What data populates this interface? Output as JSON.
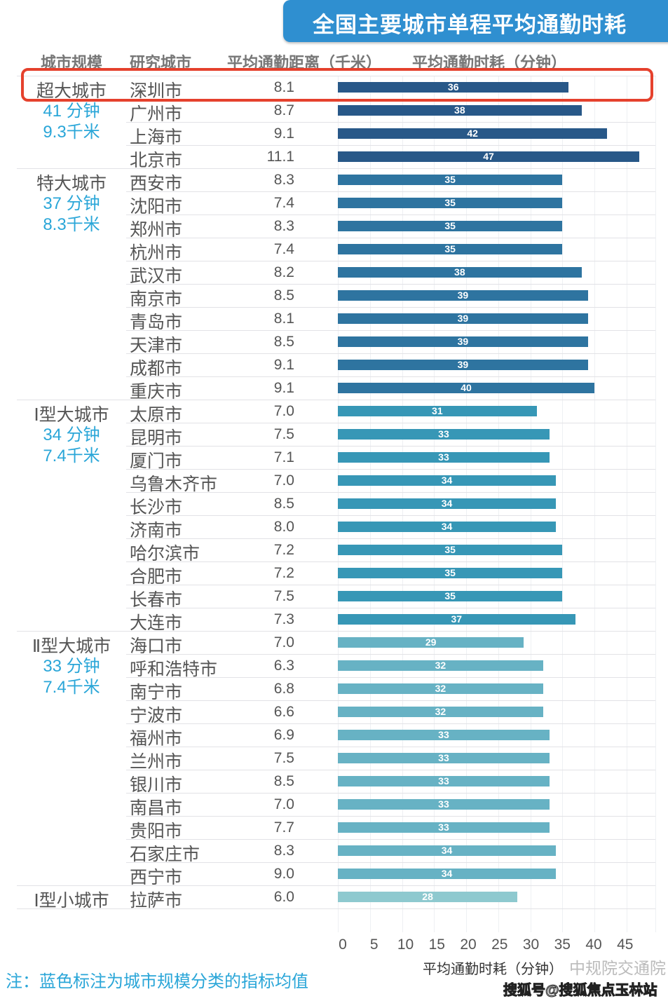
{
  "title": "全国主要城市单程平均通勤时耗",
  "headers": {
    "scale": "城市规模",
    "city": "研究城市",
    "distance": "平均通勤距离（千米）",
    "time": "平均通勤时耗（分钟）"
  },
  "colors": {
    "super": "#285888",
    "mega": "#2e74a0",
    "type1": "#3797b6",
    "type2": "#67b2c4",
    "small": "#8ec9cf",
    "highlight": "#e5412d",
    "note": "#2aa6d8",
    "title_bg": "#2f8fd0"
  },
  "groups": [
    {
      "name": "超大城市",
      "time": "41 分钟",
      "dist": "9.3千米",
      "color_key": "super"
    },
    {
      "name": "特大城市",
      "time": "37 分钟",
      "dist": "8.3千米",
      "color_key": "mega"
    },
    {
      "name": "Ⅰ型大城市",
      "time": "34 分钟",
      "dist": "7.4千米",
      "color_key": "type1"
    },
    {
      "name": "Ⅱ型大城市",
      "time": "33 分钟",
      "dist": "7.4千米",
      "color_key": "type2"
    },
    {
      "name": "Ⅰ型小城市",
      "color_key": "small"
    }
  ],
  "chart_data": {
    "type": "bar",
    "orientation": "horizontal",
    "xlabel": "平均通勤时耗（分钟）",
    "xlim": [
      0,
      47
    ],
    "xticks": [
      "0",
      "5",
      "10",
      "15",
      "20",
      "25",
      "30",
      "35",
      "40",
      "45"
    ],
    "grid": true,
    "highlighted": "深圳市",
    "rows": [
      {
        "group": 0,
        "city": "深圳市",
        "distance": "8.1",
        "time": 36
      },
      {
        "group": 0,
        "city": "广州市",
        "distance": "8.7",
        "time": 38
      },
      {
        "group": 0,
        "city": "上海市",
        "distance": "9.1",
        "time": 42
      },
      {
        "group": 0,
        "city": "北京市",
        "distance": "11.1",
        "time": 47
      },
      {
        "group": 1,
        "city": "西安市",
        "distance": "8.3",
        "time": 35
      },
      {
        "group": 1,
        "city": "沈阳市",
        "distance": "7.4",
        "time": 35
      },
      {
        "group": 1,
        "city": "郑州市",
        "distance": "8.3",
        "time": 35
      },
      {
        "group": 1,
        "city": "杭州市",
        "distance": "7.4",
        "time": 35
      },
      {
        "group": 1,
        "city": "武汉市",
        "distance": "8.2",
        "time": 38
      },
      {
        "group": 1,
        "city": "南京市",
        "distance": "8.5",
        "time": 39
      },
      {
        "group": 1,
        "city": "青岛市",
        "distance": "8.1",
        "time": 39
      },
      {
        "group": 1,
        "city": "天津市",
        "distance": "8.5",
        "time": 39
      },
      {
        "group": 1,
        "city": "成都市",
        "distance": "9.1",
        "time": 39
      },
      {
        "group": 1,
        "city": "重庆市",
        "distance": "9.1",
        "time": 40
      },
      {
        "group": 2,
        "city": "太原市",
        "distance": "7.0",
        "time": 31
      },
      {
        "group": 2,
        "city": "昆明市",
        "distance": "7.5",
        "time": 33
      },
      {
        "group": 2,
        "city": "厦门市",
        "distance": "7.1",
        "time": 33
      },
      {
        "group": 2,
        "city": "乌鲁木齐市",
        "distance": "7.0",
        "time": 34
      },
      {
        "group": 2,
        "city": "长沙市",
        "distance": "8.5",
        "time": 34
      },
      {
        "group": 2,
        "city": "济南市",
        "distance": "8.0",
        "time": 34
      },
      {
        "group": 2,
        "city": "哈尔滨市",
        "distance": "7.2",
        "time": 35
      },
      {
        "group": 2,
        "city": "合肥市",
        "distance": "7.2",
        "time": 35
      },
      {
        "group": 2,
        "city": "长春市",
        "distance": "7.5",
        "time": 35
      },
      {
        "group": 2,
        "city": "大连市",
        "distance": "7.3",
        "time": 37
      },
      {
        "group": 3,
        "city": "海口市",
        "distance": "7.0",
        "time": 29
      },
      {
        "group": 3,
        "city": "呼和浩特市",
        "distance": "6.3",
        "time": 32
      },
      {
        "group": 3,
        "city": "南宁市",
        "distance": "6.8",
        "time": 32
      },
      {
        "group": 3,
        "city": "宁波市",
        "distance": "6.6",
        "time": 32
      },
      {
        "group": 3,
        "city": "福州市",
        "distance": "6.9",
        "time": 33
      },
      {
        "group": 3,
        "city": "兰州市",
        "distance": "7.5",
        "time": 33
      },
      {
        "group": 3,
        "city": "银川市",
        "distance": "8.5",
        "time": 33
      },
      {
        "group": 3,
        "city": "南昌市",
        "distance": "7.0",
        "time": 33
      },
      {
        "group": 3,
        "city": "贵阳市",
        "distance": "7.7",
        "time": 33
      },
      {
        "group": 3,
        "city": "石家庄市",
        "distance": "8.3",
        "time": 34
      },
      {
        "group": 3,
        "city": "西宁市",
        "distance": "9.0",
        "time": 34
      },
      {
        "group": 4,
        "city": "拉萨市",
        "distance": "6.0",
        "time": 28
      }
    ]
  },
  "note": "注：蓝色标注为城市规模分类的指标均值",
  "watermark": {
    "source": "中规院交通院",
    "platform": "搜狐号@搜狐焦点玉林站"
  }
}
